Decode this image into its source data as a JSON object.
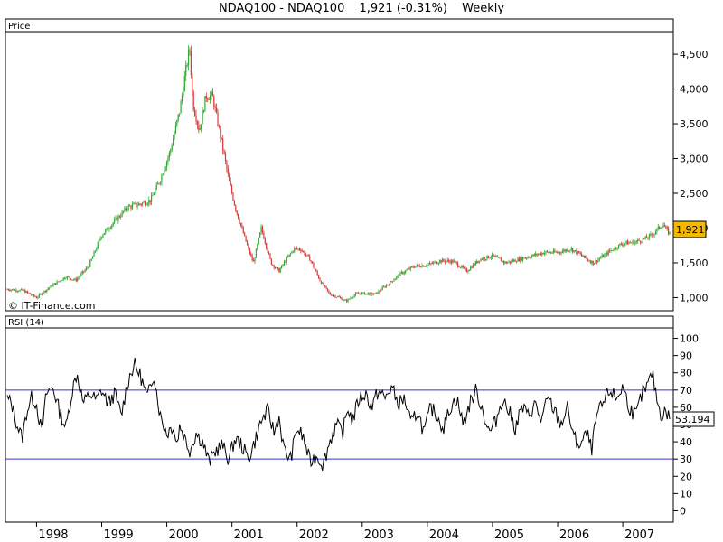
{
  "header": {
    "symbol": "NDAQ100 - NDAQ100",
    "quote": "1,921 (-0.31%)",
    "period": "Weekly"
  },
  "price_panel": {
    "label": "Price",
    "watermark": "© IT-Finance.com",
    "last_value": "1,921",
    "highlight_color": "#f5b800"
  },
  "rsi_panel": {
    "label": "RSI (14)",
    "last_value": "53.194",
    "upper_line": 70,
    "lower_line": 30,
    "line_color": "#3333cc"
  },
  "chart_data": [
    {
      "type": "candlestick",
      "up_color": "#2eaa2e",
      "down_color": "#d63b3b",
      "ylim": [
        850,
        4800
      ],
      "yticks": [
        1000,
        1500,
        2000,
        2500,
        3000,
        3500,
        4000,
        4500
      ],
      "ytick_labels": [
        "1,000",
        "1,500",
        "2,000",
        "2,500",
        "3,000",
        "3,500",
        "4,000",
        "4,500"
      ],
      "xlim": [
        1997.55,
        2007.72
      ],
      "xticks": [
        1998,
        1999,
        2000,
        2001,
        2002,
        2003,
        2004,
        2005,
        2006,
        2007
      ],
      "xtick_labels": [
        "1998",
        "1999",
        "2000",
        "2001",
        "2002",
        "2003",
        "2004",
        "2005",
        "2006",
        "2007"
      ],
      "series": [
        {
          "x": [
            1997.55,
            1997.8,
            1998.0,
            1998.2,
            1998.45,
            1998.6,
            1998.8,
            1999.0,
            1999.2,
            1999.4,
            1999.6,
            1999.75,
            1999.9,
            2000.05,
            2000.2,
            2000.28,
            2000.35,
            2000.4,
            2000.5,
            2000.6,
            2000.7,
            2000.85,
            2000.95,
            2001.05,
            2001.15,
            2001.25,
            2001.33,
            2001.45,
            2001.6,
            2001.72,
            2001.8,
            2001.95,
            2002.05,
            2002.2,
            2002.35,
            2002.5,
            2002.65,
            2002.75,
            2002.9,
            2003.0,
            2003.2,
            2003.4,
            2003.6,
            2003.8,
            2004.0,
            2004.2,
            2004.4,
            2004.6,
            2004.8,
            2005.0,
            2005.2,
            2005.4,
            2005.6,
            2005.8,
            2006.0,
            2006.2,
            2006.35,
            2006.45,
            2006.55,
            2006.7,
            2006.85,
            2007.0,
            2007.2,
            2007.35,
            2007.45,
            2007.55,
            2007.62,
            2007.68,
            2007.72
          ],
          "close": [
            1120,
            1100,
            1000,
            1150,
            1300,
            1250,
            1450,
            1900,
            2100,
            2300,
            2350,
            2400,
            2700,
            3100,
            3700,
            4200,
            4600,
            3800,
            3400,
            3900,
            3900,
            3200,
            2700,
            2300,
            2000,
            1700,
            1500,
            2000,
            1500,
            1380,
            1500,
            1700,
            1700,
            1550,
            1250,
            1050,
            1000,
            950,
            1050,
            1060,
            1050,
            1200,
            1350,
            1450,
            1470,
            1530,
            1520,
            1380,
            1550,
            1600,
            1500,
            1550,
            1600,
            1650,
            1650,
            1700,
            1620,
            1550,
            1500,
            1600,
            1700,
            1780,
            1800,
            1850,
            1900,
            2000,
            2050,
            1960,
            1921
          ]
        }
      ]
    },
    {
      "type": "line",
      "ylim": [
        -5,
        105
      ],
      "yticks": [
        0,
        10,
        20,
        30,
        40,
        50,
        60,
        70,
        80,
        90,
        100
      ],
      "ytick_labels": [
        "0",
        "10",
        "20",
        "30",
        "40",
        "50",
        "60",
        "70",
        "80",
        "90",
        "100"
      ],
      "xlim": [
        1997.55,
        2007.72
      ],
      "series": [
        {
          "x": [
            1997.55,
            1997.62,
            1997.7,
            1997.78,
            1997.85,
            1997.93,
            1998.0,
            1998.08,
            1998.15,
            1998.25,
            1998.35,
            1998.45,
            1998.55,
            1998.62,
            1998.72,
            1998.82,
            1998.92,
            1999.0,
            1999.1,
            1999.2,
            1999.3,
            1999.4,
            1999.5,
            1999.6,
            1999.7,
            1999.8,
            1999.9,
            2000.0,
            2000.1,
            2000.15,
            2000.2,
            2000.28,
            2000.35,
            2000.45,
            2000.55,
            2000.65,
            2000.75,
            2000.85,
            2000.95,
            2001.05,
            2001.15,
            2001.25,
            2001.35,
            2001.45,
            2001.55,
            2001.65,
            2001.72,
            2001.8,
            2001.9,
            2002.0,
            2002.1,
            2002.2,
            2002.3,
            2002.4,
            2002.5,
            2002.6,
            2002.7,
            2002.78,
            2002.85,
            2002.95,
            2003.05,
            2003.15,
            2003.25,
            2003.35,
            2003.45,
            2003.55,
            2003.65,
            2003.75,
            2003.85,
            2003.95,
            2004.05,
            2004.15,
            2004.25,
            2004.35,
            2004.45,
            2004.55,
            2004.65,
            2004.75,
            2004.85,
            2004.95,
            2005.05,
            2005.15,
            2005.25,
            2005.35,
            2005.45,
            2005.55,
            2005.65,
            2005.75,
            2005.85,
            2005.95,
            2006.05,
            2006.15,
            2006.25,
            2006.35,
            2006.45,
            2006.52,
            2006.6,
            2006.7,
            2006.8,
            2006.9,
            2007.0,
            2007.1,
            2007.2,
            2007.3,
            2007.38,
            2007.45,
            2007.5,
            2007.55,
            2007.6,
            2007.65,
            2007.72
          ],
          "y": [
            65,
            62,
            50,
            42,
            58,
            66,
            62,
            45,
            68,
            72,
            58,
            48,
            70,
            80,
            62,
            68,
            64,
            70,
            62,
            68,
            55,
            75,
            85,
            78,
            65,
            80,
            55,
            45,
            50,
            38,
            50,
            42,
            35,
            45,
            40,
            28,
            35,
            38,
            30,
            42,
            38,
            30,
            40,
            52,
            58,
            45,
            55,
            35,
            30,
            48,
            42,
            28,
            32,
            27,
            40,
            50,
            45,
            60,
            52,
            65,
            68,
            60,
            70,
            65,
            72,
            62,
            65,
            50,
            58,
            45,
            60,
            55,
            48,
            60,
            65,
            50,
            62,
            70,
            58,
            45,
            52,
            65,
            58,
            48,
            60,
            55,
            62,
            52,
            65,
            58,
            50,
            60,
            42,
            38,
            45,
            35,
            55,
            62,
            70,
            65,
            72,
            60,
            55,
            68,
            72,
            80,
            70,
            60,
            55,
            58,
            53.194
          ]
        }
      ]
    }
  ]
}
